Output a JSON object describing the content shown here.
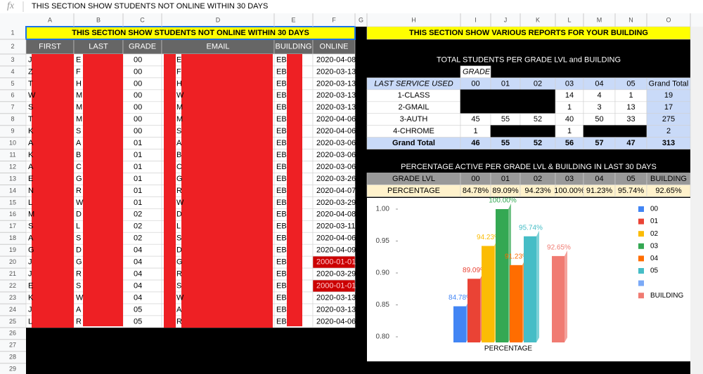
{
  "formula_bar": {
    "icon": "fx",
    "content": "THIS SECTION SHOW STUDENTS NOT ONLINE WITHIN 30 DAYS"
  },
  "columns": [
    "A",
    "B",
    "C",
    "D",
    "E",
    "F",
    "G",
    "H",
    "I",
    "J",
    "K",
    "L",
    "M",
    "N",
    "O"
  ],
  "row_numbers": [
    1,
    2,
    3,
    4,
    5,
    6,
    7,
    8,
    9,
    10,
    11,
    12,
    13,
    14,
    15,
    16,
    17,
    18,
    19,
    20,
    21,
    22,
    23,
    24,
    25,
    26,
    27,
    28,
    29
  ],
  "left": {
    "title": "THIS SECTION SHOW STUDENTS NOT ONLINE WITHIN 30 DAYS",
    "headers": [
      "FIRST",
      "LAST",
      "GRADE",
      "EMAIL",
      "BUILDING",
      "ONLINE"
    ],
    "rows": [
      [
        "J",
        "E",
        "00",
        "E",
        "EB",
        "2020-04-08"
      ],
      [
        "Z",
        "F",
        "00",
        "F",
        "EB",
        "2020-03-13"
      ],
      [
        "T",
        "H",
        "00",
        "H",
        "EB",
        "2020-03-13"
      ],
      [
        "W",
        "M",
        "00",
        "W",
        "EB",
        "2020-03-13"
      ],
      [
        "S",
        "M",
        "00",
        "M",
        "EB",
        "2020-03-13"
      ],
      [
        "T",
        "M",
        "00",
        "M",
        "EB",
        "2020-04-06"
      ],
      [
        "K",
        "S",
        "00",
        "S",
        "EB",
        "2020-04-06"
      ],
      [
        "A",
        "A",
        "01",
        "A",
        "EB",
        "2020-03-06"
      ],
      [
        "K",
        "B",
        "01",
        "B",
        "EB",
        "2020-03-06"
      ],
      [
        "A",
        "C",
        "01",
        "C",
        "EB",
        "2020-03-06"
      ],
      [
        "E",
        "G",
        "01",
        "G",
        "EB",
        "2020-03-26"
      ],
      [
        "N",
        "R",
        "01",
        "R",
        "EB",
        "2020-04-07"
      ],
      [
        "L",
        "W",
        "01",
        "W",
        "EB",
        "2020-03-29"
      ],
      [
        "M",
        "D",
        "02",
        "D",
        "EB",
        "2020-04-08"
      ],
      [
        "S",
        "L",
        "02",
        "L",
        "EB",
        "2020-03-11"
      ],
      [
        "A",
        "S",
        "02",
        "S",
        "EB",
        "2020-04-06"
      ],
      [
        "G",
        "D",
        "04",
        "D",
        "EB",
        "2020-04-09"
      ],
      [
        "J",
        "G",
        "04",
        "G",
        "EB",
        "2000-01-01"
      ],
      [
        "J",
        "R",
        "04",
        "R",
        "EB",
        "2020-03-29"
      ],
      [
        "E",
        "S",
        "04",
        "S",
        "EB",
        "2000-01-01"
      ],
      [
        "K",
        "W",
        "04",
        "W",
        "EB",
        "2020-03-13"
      ],
      [
        "J",
        "A",
        "05",
        "A",
        "EB",
        "2020-03-13"
      ],
      [
        "L",
        "R",
        "05",
        "R",
        "EB",
        "2020-04-06"
      ]
    ],
    "alert_rows": [
      17,
      19
    ],
    "alert_color": "#cc0000"
  },
  "right": {
    "title": "THIS SECTION SHOW VARIOUS REPORTS FOR YOUR BUILDING",
    "totals": {
      "title": "TOTAL STUDENTS PER GRADE LVL and BUILDING",
      "grade_label": "GRADE",
      "headers": [
        "LAST SERVICE USED",
        "00",
        "01",
        "02",
        "03",
        "04",
        "05",
        "Grand Total"
      ],
      "rows": [
        [
          "1-CLASS",
          null,
          null,
          null,
          "14",
          "4",
          "1",
          "19"
        ],
        [
          "2-GMAIL",
          null,
          null,
          null,
          "1",
          "3",
          "13",
          "17"
        ],
        [
          "3-AUTH",
          "45",
          "55",
          "52",
          "40",
          "50",
          "33",
          "275"
        ],
        [
          "4-CHROME",
          "1",
          null,
          null,
          "1",
          null,
          null,
          "2"
        ]
      ],
      "total_row": [
        "Grand Total",
        "46",
        "55",
        "52",
        "56",
        "57",
        "47",
        "313"
      ]
    },
    "percentage": {
      "title": "PERCENTAGE ACTIVE PER GRADE LVL & BUILDING IN LAST 30 DAYS",
      "headers": [
        "GRADE LVL",
        "00",
        "01",
        "02",
        "03",
        "04",
        "05",
        "BUILDING"
      ],
      "values": [
        "PERCENTAGE",
        "84.78%",
        "89.09%",
        "94.23%",
        "100.00%",
        "91.23%",
        "95.74%",
        "92.65%"
      ]
    }
  },
  "chart": {
    "type": "bar",
    "xlabel": "PERCENTAGE",
    "ylim": [
      0.8,
      1.0
    ],
    "yticks": [
      {
        "value": 0.8,
        "label": "0.80"
      },
      {
        "value": 0.85,
        "label": "0.85"
      },
      {
        "value": 0.9,
        "label": "0.90"
      },
      {
        "value": 0.95,
        "label": "0.95"
      },
      {
        "value": 1.0,
        "label": "1.00"
      }
    ],
    "series": [
      {
        "name": "00",
        "color": "#4285f4",
        "values": [
          0.8478
        ],
        "value_labels": [
          "84.78%"
        ]
      },
      {
        "name": "01",
        "color": "#ea4335",
        "values": [
          0.8909
        ],
        "value_labels": [
          "89.09%"
        ]
      },
      {
        "name": "02",
        "color": "#fbbc04",
        "values": [
          0.9423
        ],
        "value_labels": [
          "94.23%"
        ]
      },
      {
        "name": "03",
        "color": "#34a853",
        "values": [
          1.0
        ],
        "value_labels": [
          "100.00%"
        ]
      },
      {
        "name": "04",
        "color": "#ff6d01",
        "values": [
          0.9123
        ],
        "value_labels": [
          "91.23%"
        ]
      },
      {
        "name": "05",
        "color": "#46bdc6",
        "values": [
          0.9574
        ],
        "value_labels": [
          "95.74%"
        ]
      },
      {
        "name": null,
        "color": "#7baaf7",
        "values": [
          null
        ]
      },
      {
        "name": "BUILDING",
        "color": "#f07b72",
        "values": [
          0.9265
        ],
        "value_labels": [
          "92.65%"
        ]
      }
    ]
  }
}
